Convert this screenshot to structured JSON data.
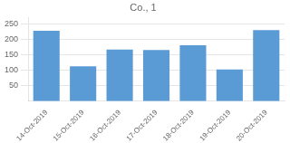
{
  "chart_data": {
    "type": "bar",
    "title": "Co., 1",
    "categories": [
      "14-Oct-2019",
      "15-Oct-2019",
      "16-Oct-2019",
      "17-Oct-2019",
      "18-Oct-2019",
      "19-Oct-2019",
      "20-Oct-2019"
    ],
    "values": [
      227,
      112,
      166,
      165,
      180,
      102,
      229
    ],
    "color": "#5B9BD5",
    "ylim": [
      0,
      270
    ],
    "yticks": [
      50,
      100,
      150,
      200,
      250
    ],
    "grid": true
  }
}
